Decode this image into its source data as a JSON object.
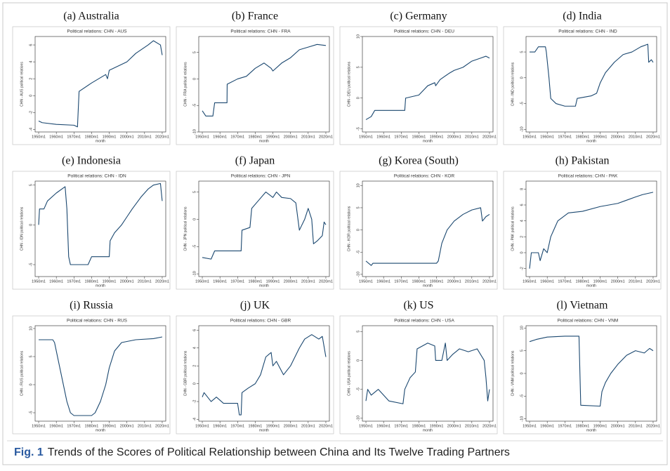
{
  "chart_data": [
    {
      "type": "line",
      "panel_label": "(a) Australia",
      "title": "Political relations: CHN - AUS",
      "ylabel": "CHN - AUS political relations",
      "xlabel": "month",
      "color": "#1a476f",
      "x": [
        1950,
        1952,
        1960,
        1970,
        1972,
        1972.9,
        1980,
        1988,
        1989,
        1990,
        2000,
        2005,
        2012,
        2015,
        2019,
        2020
      ],
      "values": [
        -3.0,
        -3.2,
        -3.4,
        -3.5,
        -3.7,
        0.5,
        1.5,
        2.5,
        2.0,
        3.0,
        4.0,
        5.0,
        6.0,
        6.5,
        6.0,
        4.8
      ],
      "xlim": [
        1948,
        2022
      ],
      "xticks": [
        {
          "value": 1950,
          "label": "1950m1"
        },
        {
          "value": 1960,
          "label": "1960m1"
        },
        {
          "value": 1970,
          "label": "1970m1"
        },
        {
          "value": 1980,
          "label": "1980m1"
        },
        {
          "value": 1990,
          "label": "1990m1"
        },
        {
          "value": 2000,
          "label": "2000m1"
        },
        {
          "value": 2010,
          "label": "2010m1"
        },
        {
          "value": 2020,
          "label": "2020m1"
        }
      ],
      "ylim": [
        -4.3,
        7
      ],
      "yticks": [
        -4,
        -2,
        0,
        2,
        4,
        6
      ]
    },
    {
      "type": "line",
      "panel_label": "(b) France",
      "title": "Political relations: CHN - FRA",
      "ylabel": "CHN - FRA political relations",
      "xlabel": "month",
      "color": "#1a476f",
      "x": [
        1950,
        1952,
        1956,
        1957,
        1964,
        1964.1,
        1970,
        1975,
        1980,
        1985,
        1989,
        1990,
        1995,
        2000,
        2005,
        2010,
        2015,
        2020
      ],
      "values": [
        -6,
        -7,
        -7,
        -4.5,
        -4.5,
        -1,
        0,
        0.5,
        2,
        3,
        2,
        1.5,
        3,
        4,
        5.5,
        6,
        6.5,
        6.3
      ],
      "xlim": [
        1948,
        2022
      ],
      "xticks": [
        {
          "value": 1950,
          "label": "1950m1"
        },
        {
          "value": 1960,
          "label": "1960m1"
        },
        {
          "value": 1970,
          "label": "1970m1"
        },
        {
          "value": 1980,
          "label": "1980m1"
        },
        {
          "value": 1990,
          "label": "1990m1"
        },
        {
          "value": 2000,
          "label": "2000m1"
        },
        {
          "value": 2010,
          "label": "2010m1"
        },
        {
          "value": 2020,
          "label": "2020m1"
        }
      ],
      "ylim": [
        -10,
        8
      ],
      "yticks": [
        -10,
        -5,
        0,
        5
      ]
    },
    {
      "type": "line",
      "panel_label": "(c) Germany",
      "title": "Political relations: CHN - DEU",
      "ylabel": "CHN - DEU political relations",
      "xlabel": "month",
      "color": "#1a476f",
      "x": [
        1950,
        1953,
        1955,
        1972,
        1972.5,
        1980,
        1985,
        1989,
        1989.5,
        1992,
        1997,
        2000,
        2005,
        2010,
        2015,
        2018,
        2020
      ],
      "values": [
        -3.5,
        -3,
        -2,
        -2,
        0,
        0.5,
        2,
        2.5,
        2,
        3,
        4,
        4.5,
        5,
        6,
        6.5,
        6.8,
        6.5
      ],
      "xlim": [
        1948,
        2022
      ],
      "xticks": [
        {
          "value": 1950,
          "label": "1950m1"
        },
        {
          "value": 1960,
          "label": "1960m1"
        },
        {
          "value": 1970,
          "label": "1970m1"
        },
        {
          "value": 1980,
          "label": "1980m1"
        },
        {
          "value": 1990,
          "label": "1990m1"
        },
        {
          "value": 2000,
          "label": "2000m1"
        },
        {
          "value": 2010,
          "label": "2010m1"
        },
        {
          "value": 2020,
          "label": "2020m1"
        }
      ],
      "ylim": [
        -5.5,
        10
      ],
      "yticks": [
        -5,
        0,
        5,
        10
      ]
    },
    {
      "type": "line",
      "panel_label": "(d) India",
      "title": "Political relations: CHN - IND",
      "ylabel": "CHN - IND political relations",
      "xlabel": "month",
      "color": "#1a476f",
      "x": [
        1950,
        1953,
        1955,
        1959,
        1959.5,
        1961,
        1962,
        1965,
        1970,
        1976,
        1977,
        1985,
        1988,
        1990,
        1993,
        1998,
        2003,
        2008,
        2013,
        2017,
        2017.5,
        2019,
        2020
      ],
      "values": [
        5,
        5,
        6,
        6,
        5,
        0,
        -4,
        -5,
        -5.5,
        -5.5,
        -4,
        -3.5,
        -3,
        -1,
        1,
        3,
        4.5,
        5,
        6,
        6.5,
        3,
        3.5,
        3
      ],
      "xlim": [
        1948,
        2022
      ],
      "xticks": [
        {
          "value": 1950,
          "label": "1950m1"
        },
        {
          "value": 1960,
          "label": "1960m1"
        },
        {
          "value": 1970,
          "label": "1970m1"
        },
        {
          "value": 1980,
          "label": "1980m1"
        },
        {
          "value": 1990,
          "label": "1990m1"
        },
        {
          "value": 2000,
          "label": "2000m1"
        },
        {
          "value": 2010,
          "label": "2010m1"
        },
        {
          "value": 2020,
          "label": "2020m1"
        }
      ],
      "ylim": [
        -10.5,
        8
      ],
      "yticks": [
        -10,
        -5,
        0,
        5
      ]
    },
    {
      "type": "line",
      "panel_label": "(e) Indonesia",
      "title": "Political relations: CHN - IDN",
      "ylabel": "CHN - IDN political relations",
      "xlabel": "month",
      "color": "#1a476f",
      "x": [
        1950,
        1950.5,
        1953,
        1955,
        1960,
        1965,
        1966,
        1967,
        1968,
        1978,
        1980,
        1990,
        1990.5,
        1993,
        1997,
        2000,
        2003,
        2008,
        2012,
        2015,
        2019,
        2020
      ],
      "values": [
        0,
        2,
        2,
        3,
        4,
        4.8,
        2,
        -4,
        -5,
        -5,
        -4,
        -4,
        -2,
        -1,
        0,
        1,
        2,
        3.5,
        4.5,
        5,
        5.2,
        3
      ],
      "xlim": [
        1948,
        2022
      ],
      "xticks": [
        {
          "value": 1950,
          "label": "1950m1"
        },
        {
          "value": 1960,
          "label": "1960m1"
        },
        {
          "value": 1970,
          "label": "1970m1"
        },
        {
          "value": 1980,
          "label": "1980m1"
        },
        {
          "value": 1990,
          "label": "1990m1"
        },
        {
          "value": 2000,
          "label": "2000m1"
        },
        {
          "value": 2010,
          "label": "2010m1"
        },
        {
          "value": 2020,
          "label": "2020m1"
        }
      ],
      "ylim": [
        -6.5,
        5.5
      ],
      "yticks": [
        -5,
        0,
        5
      ]
    },
    {
      "type": "line",
      "panel_label": "(f) Japan",
      "title": "Political relations: CHN - JPN",
      "ylabel": "CHN - JPN political relations",
      "xlabel": "month",
      "color": "#1a476f",
      "x": [
        1950,
        1955,
        1957,
        1972,
        1972.5,
        1977,
        1978,
        1982,
        1986,
        1990,
        1992,
        1995,
        2000,
        2003,
        2005,
        2008,
        2010,
        2012,
        2013,
        2015,
        2018,
        2019,
        2020
      ],
      "values": [
        -7,
        -7.3,
        -5.8,
        -5.8,
        -2,
        -1.5,
        2,
        3.5,
        5,
        4,
        5,
        4,
        3.8,
        3,
        -2,
        0,
        2,
        0,
        -4.5,
        -4,
        -3,
        -0.5,
        -1
      ],
      "xlim": [
        1948,
        2022
      ],
      "xticks": [
        {
          "value": 1950,
          "label": "1950m1"
        },
        {
          "value": 1960,
          "label": "1960m1"
        },
        {
          "value": 1970,
          "label": "1970m1"
        },
        {
          "value": 1980,
          "label": "1980m1"
        },
        {
          "value": 1990,
          "label": "1990m1"
        },
        {
          "value": 2000,
          "label": "2000m1"
        },
        {
          "value": 2010,
          "label": "2010m1"
        },
        {
          "value": 2020,
          "label": "2020m1"
        }
      ],
      "ylim": [
        -10.5,
        7
      ],
      "yticks": [
        -10,
        -5,
        0,
        5
      ]
    },
    {
      "type": "line",
      "panel_label": "(g) Korea (South)",
      "title": "Political relations: CHN - KOR",
      "ylabel": "CHN - KOR political relations",
      "xlabel": "month",
      "color": "#1a476f",
      "x": [
        1950,
        1953,
        1954,
        1990,
        1991,
        1993,
        1996,
        2000,
        2005,
        2010,
        2015,
        2016,
        2018,
        2020
      ],
      "values": [
        -7,
        -8,
        -7.5,
        -7.5,
        -7,
        -3,
        0,
        2,
        3.5,
        4.5,
        5,
        2,
        3,
        3.5
      ],
      "xlim": [
        1948,
        2022
      ],
      "xticks": [
        {
          "value": 1950,
          "label": "1950m1"
        },
        {
          "value": 1960,
          "label": "1960m1"
        },
        {
          "value": 1970,
          "label": "1970m1"
        },
        {
          "value": 1980,
          "label": "1980m1"
        },
        {
          "value": 1990,
          "label": "1990m1"
        },
        {
          "value": 2000,
          "label": "2000m1"
        },
        {
          "value": 2010,
          "label": "2010m1"
        },
        {
          "value": 2020,
          "label": "2020m1"
        }
      ],
      "ylim": [
        -10.5,
        11
      ],
      "yticks": [
        -10,
        -5,
        0,
        5,
        10
      ]
    },
    {
      "type": "line",
      "panel_label": "(h) Pakistan",
      "title": "Political relations: CHN - PAK",
      "ylabel": "CHN - PAK political relations",
      "xlabel": "month",
      "color": "#1a476f",
      "x": [
        1950,
        1951,
        1955,
        1956,
        1958,
        1960,
        1962,
        1964,
        1966,
        1972,
        1980,
        1990,
        2000,
        2005,
        2010,
        2014,
        2020
      ],
      "values": [
        -2,
        0,
        0,
        -1,
        0.5,
        0,
        2,
        3,
        4,
        5,
        5.2,
        5.8,
        6.2,
        6.6,
        7,
        7.3,
        7.6
      ],
      "xlim": [
        1948,
        2022
      ],
      "xticks": [
        {
          "value": 1950,
          "label": "1950m1"
        },
        {
          "value": 1960,
          "label": "1960m1"
        },
        {
          "value": 1970,
          "label": "1970m1"
        },
        {
          "value": 1980,
          "label": "1980m1"
        },
        {
          "value": 1990,
          "label": "1990m1"
        },
        {
          "value": 2000,
          "label": "2000m1"
        },
        {
          "value": 2010,
          "label": "2010m1"
        },
        {
          "value": 2020,
          "label": "2020m1"
        }
      ],
      "ylim": [
        -3,
        9
      ],
      "yticks": [
        -2,
        0,
        2,
        4,
        6,
        8
      ]
    },
    {
      "type": "line",
      "panel_label": "(i) Russia",
      "title": "Political relations: CHN - RUS",
      "ylabel": "CHN - RUS political relations",
      "xlabel": "month",
      "color": "#1a476f",
      "x": [
        1950,
        1958,
        1959,
        1962,
        1964,
        1966,
        1968,
        1970,
        1980,
        1982,
        1985,
        1988,
        1990,
        1993,
        1997,
        2005,
        2015,
        2020
      ],
      "values": [
        8,
        8,
        7.5,
        3,
        0,
        -3,
        -5,
        -5.5,
        -5.5,
        -5,
        -3,
        0,
        3,
        6,
        7.5,
        8,
        8.2,
        8.5
      ],
      "xlim": [
        1948,
        2022
      ],
      "xticks": [
        {
          "value": 1950,
          "label": "1950m1"
        },
        {
          "value": 1960,
          "label": "1960m1"
        },
        {
          "value": 1970,
          "label": "1970m1"
        },
        {
          "value": 1980,
          "label": "1980m1"
        },
        {
          "value": 1990,
          "label": "1990m1"
        },
        {
          "value": 2000,
          "label": "2000m1"
        },
        {
          "value": 2010,
          "label": "2010m1"
        },
        {
          "value": 2020,
          "label": "2020m1"
        }
      ],
      "ylim": [
        -6.5,
        10.5
      ],
      "yticks": [
        -5,
        0,
        5,
        10
      ]
    },
    {
      "type": "line",
      "panel_label": "(j) UK",
      "title": "Political relations: CHN - GBR",
      "ylabel": "CHN - GBR political relations",
      "xlabel": "month",
      "color": "#1a476f",
      "x": [
        1950,
        1951,
        1955,
        1958,
        1962,
        1970,
        1971,
        1972,
        1972.5,
        1976,
        1980,
        1983,
        1986,
        1989,
        1990,
        1992,
        1996,
        2000,
        2005,
        2008,
        2012,
        2016,
        2018,
        2020
      ],
      "values": [
        -1.5,
        -1,
        -2,
        -1.5,
        -2.2,
        -2.2,
        -3.5,
        -3.5,
        -1,
        -0.5,
        0,
        1,
        3,
        3.5,
        2,
        2.5,
        1,
        2,
        4,
        5,
        5.5,
        5,
        5.3,
        3
      ],
      "xlim": [
        1948,
        2022
      ],
      "xticks": [
        {
          "value": 1950,
          "label": "1950m1"
        },
        {
          "value": 1960,
          "label": "1960m1"
        },
        {
          "value": 1970,
          "label": "1970m1"
        },
        {
          "value": 1980,
          "label": "1980m1"
        },
        {
          "value": 1990,
          "label": "1990m1"
        },
        {
          "value": 2000,
          "label": "2000m1"
        },
        {
          "value": 2010,
          "label": "2010m1"
        },
        {
          "value": 2020,
          "label": "2020m1"
        }
      ],
      "ylim": [
        -4.2,
        6.5
      ],
      "yticks": [
        -4,
        -2,
        0,
        2,
        4,
        6
      ]
    },
    {
      "type": "line",
      "panel_label": "(k) US",
      "title": "Political relations: CHN - USA",
      "ylabel": "CHN - USA political relations",
      "xlabel": "month",
      "color": "#1a476f",
      "x": [
        1950,
        1951,
        1953,
        1957,
        1963,
        1971,
        1972,
        1975,
        1978,
        1979,
        1985,
        1989,
        1989.5,
        1993,
        1995,
        1996,
        1999,
        2003,
        2008,
        2013,
        2017,
        2018,
        2019,
        2020
      ],
      "values": [
        -7,
        -5,
        -6,
        -5,
        -7,
        -7.5,
        -5,
        -3,
        -2,
        2,
        3,
        2.5,
        0,
        0,
        3,
        0,
        1,
        2,
        1.5,
        2,
        0,
        -3,
        -7,
        -5
      ],
      "xlim": [
        1948,
        2022
      ],
      "xticks": [
        {
          "value": 1950,
          "label": "1950m1"
        },
        {
          "value": 1960,
          "label": "1960m1"
        },
        {
          "value": 1970,
          "label": "1970m1"
        },
        {
          "value": 1980,
          "label": "1980m1"
        },
        {
          "value": 1990,
          "label": "1990m1"
        },
        {
          "value": 2000,
          "label": "2000m1"
        },
        {
          "value": 2010,
          "label": "2010m1"
        },
        {
          "value": 2020,
          "label": "2020m1"
        }
      ],
      "ylim": [
        -10.5,
        6
      ],
      "yticks": [
        -10,
        -5,
        0,
        5
      ]
    },
    {
      "type": "line",
      "panel_label": "(l) Vietnam",
      "title": "Political relations: CHN - VNM",
      "ylabel": "CHN - VNM political relations",
      "xlabel": "month",
      "color": "#1a476f",
      "x": [
        1950,
        1954,
        1960,
        1970,
        1978,
        1979,
        1990,
        1991,
        1993,
        1996,
        2000,
        2005,
        2010,
        2015,
        2018,
        2020
      ],
      "values": [
        7,
        7.5,
        8,
        8.2,
        8.2,
        -7,
        -7.2,
        -4,
        -2,
        0,
        2,
        4,
        5,
        4.5,
        5.5,
        5
      ],
      "xlim": [
        1948,
        2022
      ],
      "xticks": [
        {
          "value": 1950,
          "label": "1950m1"
        },
        {
          "value": 1960,
          "label": "1960m1"
        },
        {
          "value": 1970,
          "label": "1970m1"
        },
        {
          "value": 1980,
          "label": "1980m1"
        },
        {
          "value": 1990,
          "label": "1990m1"
        },
        {
          "value": 2000,
          "label": "2000m1"
        },
        {
          "value": 2010,
          "label": "2010m1"
        },
        {
          "value": 2020,
          "label": "2020m1"
        }
      ],
      "ylim": [
        -10.5,
        10.5
      ],
      "yticks": [
        -10,
        -5,
        0,
        5,
        10
      ]
    }
  ],
  "caption": {
    "label": "Fig. 1",
    "text": "Trends of the Scores of Political Relationship between China and Its Twelve Trading Partners"
  }
}
